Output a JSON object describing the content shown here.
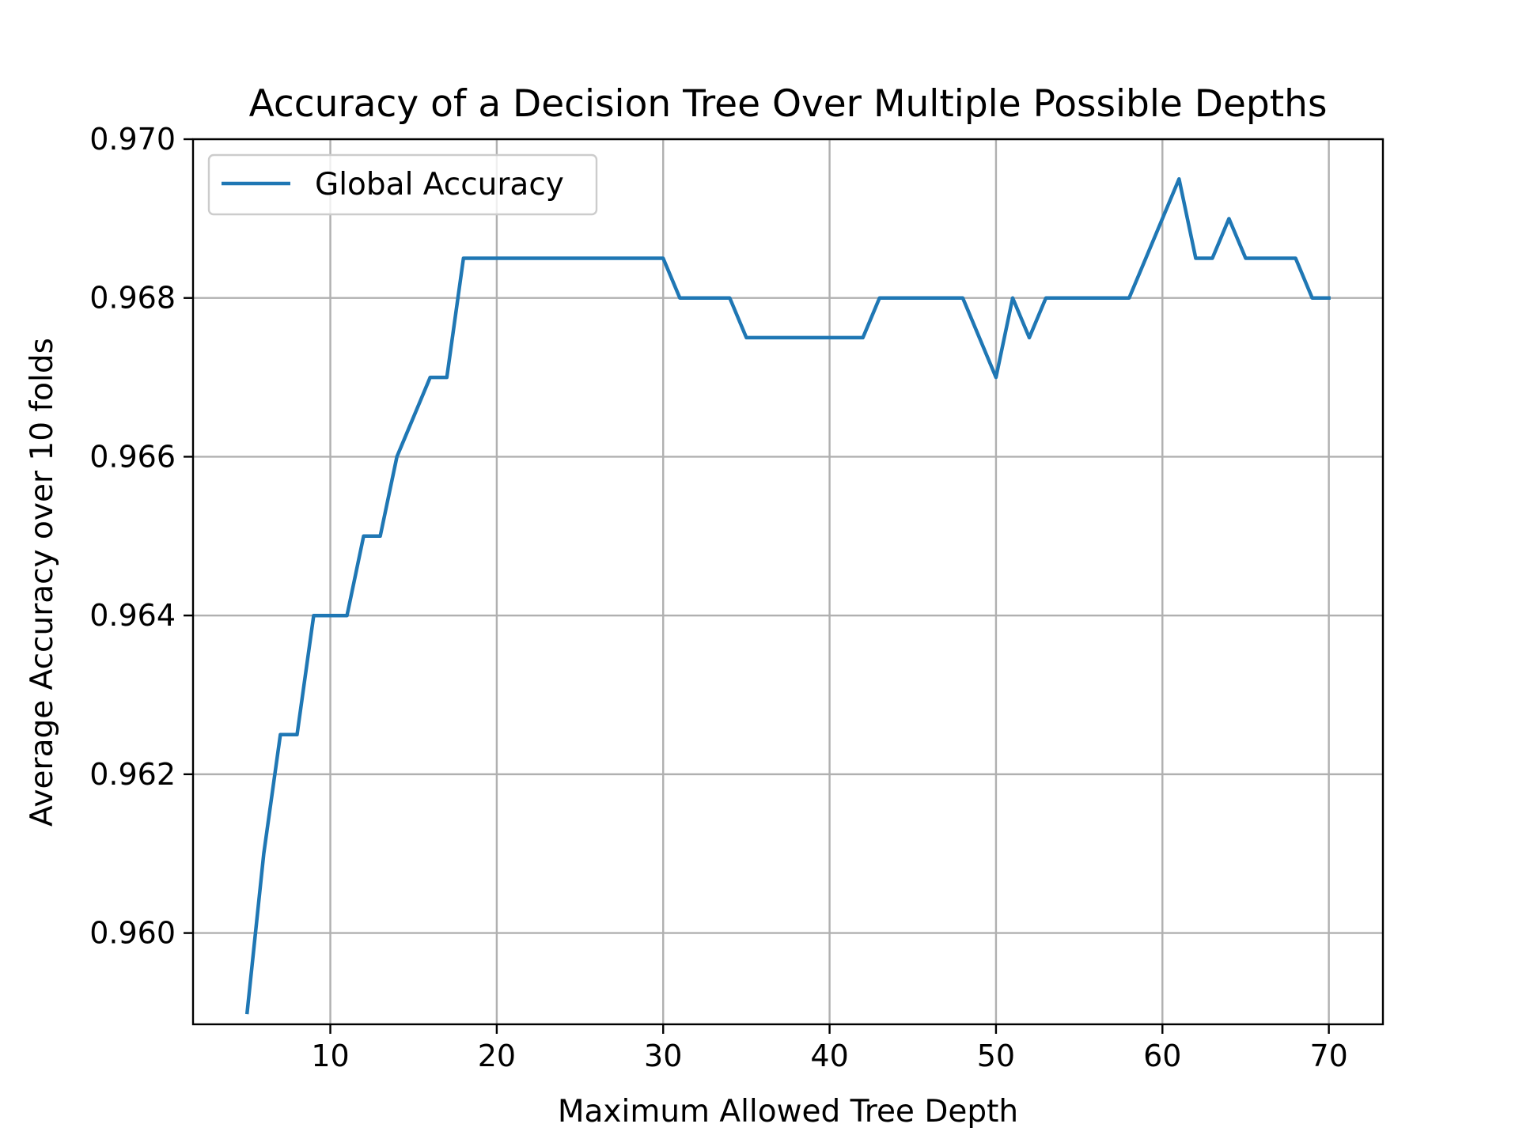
{
  "chart_data": {
    "type": "line",
    "title": "Accuracy of a Decision Tree Over Multiple Possible Depths",
    "xlabel": "Maximum Allowed Tree Depth",
    "ylabel": "Average Accuracy over 10 folds",
    "xlim": [
      1.75,
      73.25
    ],
    "ylim": [
      0.95885,
      0.97
    ],
    "xticks": [
      10,
      20,
      30,
      40,
      50,
      60,
      70
    ],
    "xtick_labels": [
      "10",
      "20",
      "30",
      "40",
      "50",
      "60",
      "70"
    ],
    "yticks": [
      0.96,
      0.962,
      0.964,
      0.966,
      0.968,
      0.97
    ],
    "ytick_labels": [
      "0.960",
      "0.962",
      "0.964",
      "0.966",
      "0.968",
      "0.970"
    ],
    "grid": true,
    "legend_position": "top-left",
    "series": [
      {
        "name": "Global Accuracy",
        "color": "#1f77b4",
        "x": [
          5,
          6,
          7,
          8,
          9,
          10,
          11,
          12,
          13,
          14,
          15,
          16,
          17,
          18,
          19,
          20,
          21,
          22,
          23,
          24,
          25,
          26,
          27,
          28,
          29,
          30,
          31,
          32,
          33,
          34,
          35,
          36,
          37,
          38,
          39,
          40,
          41,
          42,
          43,
          44,
          45,
          46,
          47,
          48,
          49,
          50,
          51,
          52,
          53,
          54,
          55,
          56,
          57,
          58,
          59,
          60,
          61,
          62,
          63,
          64,
          65,
          66,
          67,
          68,
          69,
          70
        ],
        "values": [
          0.959,
          0.961,
          0.9625,
          0.9625,
          0.964,
          0.964,
          0.964,
          0.965,
          0.965,
          0.966,
          0.9665,
          0.967,
          0.967,
          0.9685,
          0.9685,
          0.9685,
          0.9685,
          0.9685,
          0.9685,
          0.9685,
          0.9685,
          0.9685,
          0.9685,
          0.9685,
          0.9685,
          0.9685,
          0.968,
          0.968,
          0.968,
          0.968,
          0.9675,
          0.9675,
          0.9675,
          0.9675,
          0.9675,
          0.9675,
          0.9675,
          0.9675,
          0.968,
          0.968,
          0.968,
          0.968,
          0.968,
          0.968,
          0.9675,
          0.967,
          0.968,
          0.9675,
          0.968,
          0.968,
          0.968,
          0.968,
          0.968,
          0.968,
          0.9685,
          0.969,
          0.9695,
          0.9685,
          0.9685,
          0.969,
          0.9685,
          0.9685,
          0.9685,
          0.9685,
          0.968,
          0.968
        ]
      }
    ]
  }
}
